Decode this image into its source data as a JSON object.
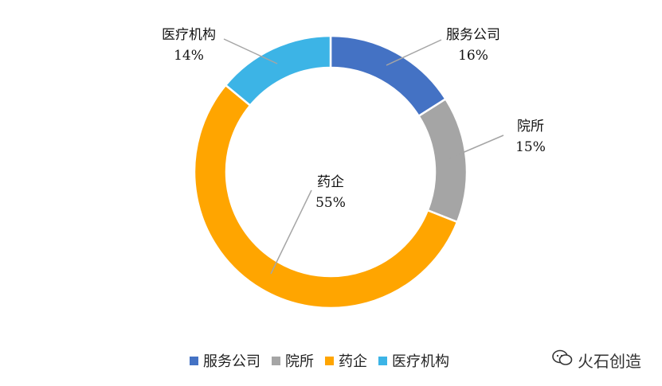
{
  "chart_data": {
    "type": "pie",
    "donut": true,
    "categories": [
      "服务公司",
      "院所",
      "药企",
      "医疗机构"
    ],
    "values": [
      16,
      15,
      55,
      14
    ],
    "labels": [
      "16%",
      "15%",
      "55%",
      "14%"
    ],
    "colors": [
      "#4472C4",
      "#A5A5A5",
      "#FFA500",
      "#3CB4E6"
    ],
    "legend_position": "bottom"
  },
  "watermark": {
    "text": "火石创造",
    "icon": "wechat-icon"
  }
}
